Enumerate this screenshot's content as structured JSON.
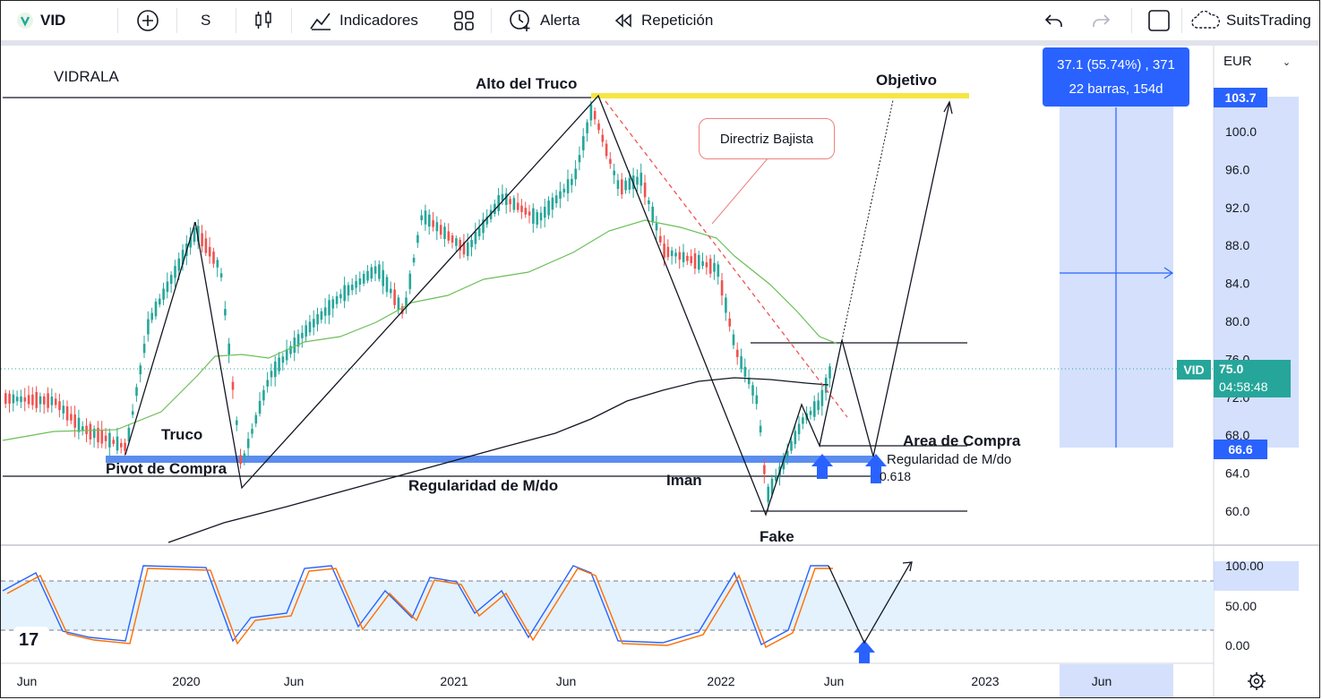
{
  "toolbar": {
    "symbol": "VID",
    "interval": "S",
    "indicators_label": "Indicadores",
    "alert_label": "Alerta",
    "replay_label": "Repetición",
    "brand": "SuitsTrading",
    "icons": [
      "logo-icon",
      "add-symbol-icon",
      "candles-icon",
      "indicators-icon",
      "templates-icon",
      "alert-icon",
      "replay-icon",
      "undo-icon",
      "redo-icon",
      "layout-icon",
      "cloud-icon"
    ]
  },
  "chart": {
    "symbol_name": "VIDRALA",
    "currency": "EUR",
    "price_axis": [
      "100.0",
      "96.0",
      "92.0",
      "88.0",
      "84.0",
      "80.0",
      "76.0",
      "72.0",
      "68.0",
      "64.0",
      "60.0"
    ],
    "osc_axis": [
      "100.00",
      "50.00",
      "0.00"
    ],
    "time_axis": [
      "Jun",
      "2020",
      "Jun",
      "2021",
      "Jun",
      "2022",
      "Jun",
      "2023",
      "Jun"
    ],
    "tag_top": "103.7",
    "tag_bottom": "66.6",
    "tag_symbol": "VID",
    "last_price": "75.0",
    "countdown": "04:58:48",
    "measure_line1": "37.1 (55.74%) , 371",
    "measure_line2": "22 barras, 154d",
    "fib_label": "0.618",
    "colors": {
      "up": "#26a69a",
      "down": "#ef5350",
      "accent": "#2962ff",
      "yellow": "#f5e642",
      "ma50": "#6bbf59",
      "ma200": "#131722",
      "stoch_k": "#2962ff",
      "stoch_d": "#ff6d00",
      "blue_level": "#5b8def"
    }
  },
  "annotations": {
    "alto_truco": "Alto del Truco",
    "objetivo": "Objetivo",
    "directriz": "Directriz Bajista",
    "truco": "Truco",
    "pivot": "Pivot de Compra",
    "regularidad1": "Regularidad de M/do",
    "iman": "Iman",
    "area_compra": "Area de Compra",
    "regularidad2": "Regularidad de M/do",
    "fake": "Fake"
  }
}
